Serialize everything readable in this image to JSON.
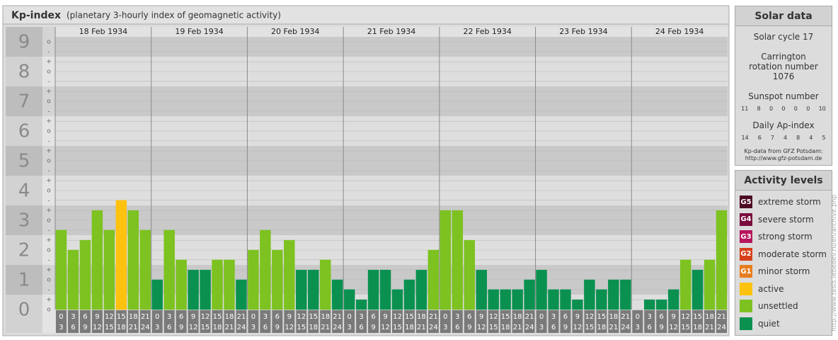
{
  "chart_data": {
    "type": "bar",
    "title": "Kp-index",
    "subtitle": "(planetary 3-hourly index of geomagnetic activity)",
    "days": [
      "18 Feb 1934",
      "19 Feb 1934",
      "20 Feb 1934",
      "21 Feb 1934",
      "22 Feb 1934",
      "23 Feb 1934",
      "24 Feb 1934"
    ],
    "hour_labels": [
      [
        "0",
        "3"
      ],
      [
        "3",
        "6"
      ],
      [
        "6",
        "9"
      ],
      [
        "9",
        "12"
      ],
      [
        "12",
        "15"
      ],
      [
        "15",
        "18"
      ],
      [
        "18",
        "21"
      ],
      [
        "21",
        "24"
      ]
    ],
    "values": [
      2.67,
      2,
      2.33,
      3.33,
      2.67,
      3.67,
      3.33,
      2.67,
      1,
      2.67,
      1.67,
      1.33,
      1.33,
      1.67,
      1.67,
      1,
      2,
      2.67,
      2,
      2.33,
      1.33,
      1.33,
      1.67,
      1,
      0.67,
      0.33,
      1.33,
      1.33,
      0.67,
      1,
      1.33,
      2,
      3.33,
      3.33,
      2.33,
      1.33,
      0.67,
      0.67,
      0.67,
      1,
      1.33,
      0.67,
      0.67,
      0.33,
      1,
      0.67,
      1,
      1,
      0,
      0.33,
      0.33,
      0.67,
      1.67,
      1.33,
      1.67,
      3.33
    ],
    "colors": [
      "#7dc221",
      "#7dc221",
      "#7dc221",
      "#7dc221",
      "#7dc221",
      "#ffc20e",
      "#7dc221",
      "#7dc221",
      "#0a9150",
      "#7dc221",
      "#7dc221",
      "#0a9150",
      "#0a9150",
      "#7dc221",
      "#7dc221",
      "#0a9150",
      "#7dc221",
      "#7dc221",
      "#7dc221",
      "#7dc221",
      "#0a9150",
      "#0a9150",
      "#7dc221",
      "#0a9150",
      "#0a9150",
      "#0a9150",
      "#0a9150",
      "#0a9150",
      "#0a9150",
      "#0a9150",
      "#0a9150",
      "#7dc221",
      "#7dc221",
      "#7dc221",
      "#7dc221",
      "#0a9150",
      "#0a9150",
      "#0a9150",
      "#0a9150",
      "#0a9150",
      "#0a9150",
      "#0a9150",
      "#0a9150",
      "#0a9150",
      "#0a9150",
      "#0a9150",
      "#0a9150",
      "#0a9150",
      "#0a9150",
      "#0a9150",
      "#0a9150",
      "#0a9150",
      "#7dc221",
      "#0a9150",
      "#7dc221",
      "#7dc221"
    ],
    "ylim": [
      0,
      9.5
    ],
    "yticks": [
      0,
      1,
      2,
      3,
      4,
      5,
      6,
      7,
      8,
      9
    ],
    "minor_yticks": [
      {
        "value": 0,
        "label": "o"
      },
      {
        "value": 0.33,
        "label": "+"
      },
      {
        "value": 0.67,
        "label": "-"
      },
      {
        "value": 1,
        "label": "o"
      },
      {
        "value": 1.33,
        "label": "+"
      },
      {
        "value": 1.67,
        "label": "-"
      },
      {
        "value": 2,
        "label": "o"
      },
      {
        "value": 2.33,
        "label": "+"
      },
      {
        "value": 2.67,
        "label": "-"
      },
      {
        "value": 3,
        "label": "o"
      },
      {
        "value": 3.33,
        "label": "+"
      },
      {
        "value": 3.67,
        "label": "-"
      },
      {
        "value": 4,
        "label": "o"
      },
      {
        "value": 4.33,
        "label": "+"
      },
      {
        "value": 4.67,
        "label": "-"
      },
      {
        "value": 5,
        "label": "o"
      },
      {
        "value": 5.33,
        "label": "+"
      },
      {
        "value": 5.67,
        "label": "-"
      },
      {
        "value": 6,
        "label": "o"
      },
      {
        "value": 6.33,
        "label": "+"
      },
      {
        "value": 6.67,
        "label": "-"
      },
      {
        "value": 7,
        "label": "o"
      },
      {
        "value": 7.33,
        "label": "+"
      },
      {
        "value": 7.67,
        "label": "-"
      },
      {
        "value": 8,
        "label": "o"
      },
      {
        "value": 8.33,
        "label": "+"
      },
      {
        "value": 8.67,
        "label": "-"
      },
      {
        "value": 9,
        "label": "o"
      }
    ],
    "grid": true
  },
  "solar_data": {
    "title": "Solar data",
    "cycle": "Solar cycle 17",
    "carrington": "Carrington rotation number 1076",
    "sunspot_title": "Sunspot number",
    "sunspot": [
      11,
      8,
      0,
      0,
      0,
      0,
      10
    ],
    "ap_title": "Daily Ap-index",
    "ap": [
      14,
      6,
      7,
      4,
      8,
      4,
      5
    ],
    "source": "Kp-data from GFZ Potsdam:",
    "source_url": "http://www.gfz-potsdam.de"
  },
  "activity": {
    "title": "Activity levels",
    "levels": [
      {
        "badge": "G5",
        "name": "extreme storm",
        "color": "#4d0a24"
      },
      {
        "badge": "G4",
        "name": "severe storm",
        "color": "#7a0d3e"
      },
      {
        "badge": "G3",
        "name": "strong storm",
        "color": "#b8155e"
      },
      {
        "badge": "G2",
        "name": "moderate storm",
        "color": "#d8401a"
      },
      {
        "badge": "G1",
        "name": "minor storm",
        "color": "#e87d1e"
      },
      {
        "badge": null,
        "name": "active",
        "color": "#ffc20e"
      },
      {
        "badge": null,
        "name": "unsettled",
        "color": "#7dc221"
      },
      {
        "badge": null,
        "name": "quiet",
        "color": "#0a9150"
      }
    ]
  },
  "credit": "http://www.tesis.lebedev.ru/en/archive.php"
}
